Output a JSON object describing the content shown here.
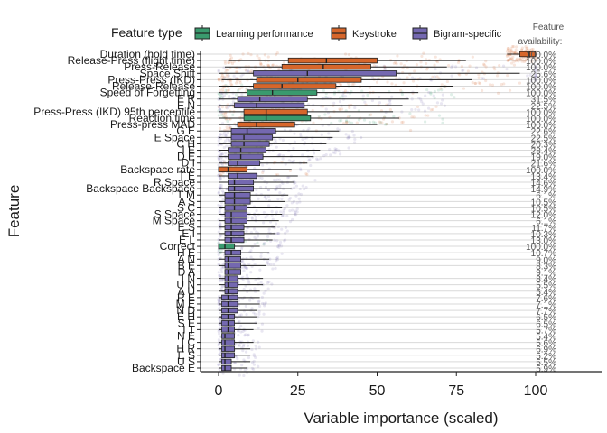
{
  "chart_data": {
    "type": "boxplot",
    "xlabel": "Variable importance (scaled)",
    "ylabel": "Feature",
    "xlim": [
      -5,
      108
    ],
    "x_ticks": [
      0,
      25,
      50,
      75,
      100
    ],
    "legend": {
      "title": "Feature type",
      "position": "top",
      "entries": [
        {
          "name": "Learning performance",
          "color": "#3a9a6e"
        },
        {
          "name": "Keystroke",
          "color": "#d6662b"
        },
        {
          "name": "Bigram-specific",
          "color": "#7468b0"
        }
      ]
    },
    "availability_title": "Feature availability:",
    "features": [
      {
        "name": "Duration (hold time)",
        "type": "Keystroke",
        "availability": "100.0%",
        "wlo": 91,
        "q1": 95,
        "med": 98,
        "q3": 100,
        "whi": 100
      },
      {
        "name": "Release-Press (flight time)",
        "type": "Keystroke",
        "availability": "100.0%",
        "wlo": 3,
        "q1": 22,
        "med": 34,
        "q3": 50,
        "whi": 78
      },
      {
        "name": "Press-Release",
        "type": "Keystroke",
        "availability": "100.0%",
        "wlo": 2,
        "q1": 20,
        "med": 33,
        "q3": 48,
        "whi": 72
      },
      {
        "name": "Space Shift",
        "type": "Bigram-specific",
        "availability": "25.6%",
        "wlo": 0,
        "q1": 11,
        "med": 28,
        "q3": 56,
        "whi": 95
      },
      {
        "name": "Press-Press (IKD)",
        "type": "Keystroke",
        "availability": "100.0%",
        "wlo": 1,
        "q1": 12,
        "med": 25,
        "q3": 45,
        "whi": 80
      },
      {
        "name": "Release-Release",
        "type": "Keystroke",
        "availability": "100.0%",
        "wlo": 0,
        "q1": 11,
        "med": 20,
        "q3": 37,
        "whi": 74
      },
      {
        "name": "Speed of Forgetting",
        "type": "Learning performance",
        "availability": "100.0%",
        "wlo": 0,
        "q1": 9,
        "med": 17,
        "q3": 31,
        "whi": 63
      },
      {
        "name": "E R",
        "type": "Bigram-specific",
        "availability": "31.5%",
        "wlo": 0,
        "q1": 6,
        "med": 13,
        "q3": 28,
        "whi": 60
      },
      {
        "name": "E N",
        "type": "Bigram-specific",
        "availability": "22.5%",
        "wlo": 0,
        "q1": 5,
        "med": 12,
        "q3": 27,
        "whi": 58
      },
      {
        "name": "Press-Press (IKD) 95th percentile",
        "type": "Keystroke",
        "availability": "100.0%",
        "wlo": 0,
        "q1": 8,
        "med": 15,
        "q3": 28,
        "whi": 55
      },
      {
        "name": "Reaction time",
        "type": "Learning performance",
        "availability": "100.0%",
        "wlo": 0,
        "q1": 8,
        "med": 15,
        "q3": 29,
        "whi": 57
      },
      {
        "name": "Press-press MAD",
        "type": "Keystroke",
        "availability": "100.0%",
        "wlo": 0,
        "q1": 6,
        "med": 12,
        "q3": 24,
        "whi": 50
      },
      {
        "name": "G E",
        "type": "Bigram-specific",
        "availability": "22.6%",
        "wlo": 0,
        "q1": 4,
        "med": 9,
        "q3": 18,
        "whi": 38
      },
      {
        "name": "E Space",
        "type": "Bigram-specific",
        "availability": "22.5%",
        "wlo": 0,
        "q1": 4,
        "med": 8,
        "q3": 17,
        "whi": 36
      },
      {
        "name": "C H",
        "type": "Bigram-specific",
        "availability": "20.3%",
        "wlo": 0,
        "q1": 4,
        "med": 8,
        "q3": 16,
        "whi": 34
      },
      {
        "name": "I E",
        "type": "Bigram-specific",
        "availability": "28.4%",
        "wlo": 0,
        "q1": 3,
        "med": 7,
        "q3": 15,
        "whi": 32
      },
      {
        "name": "D E",
        "type": "Bigram-specific",
        "availability": "19.0%",
        "wlo": 0,
        "q1": 3,
        "med": 7,
        "q3": 14,
        "whi": 30
      },
      {
        "name": "D I",
        "type": "Bigram-specific",
        "availability": "21.6%",
        "wlo": 0,
        "q1": 3,
        "med": 6,
        "q3": 13,
        "whi": 28
      },
      {
        "name": "Backspace rate",
        "type": "Keystroke",
        "availability": "100.0%",
        "wlo": 0,
        "q1": 0,
        "med": 3,
        "q3": 9,
        "whi": 23
      },
      {
        "name": "T E",
        "type": "Bigram-specific",
        "availability": "13.4%",
        "wlo": 0,
        "q1": 3,
        "med": 6,
        "q3": 12,
        "whi": 25
      },
      {
        "name": "R Space",
        "type": "Bigram-specific",
        "availability": "14.6%",
        "wlo": 0,
        "q1": 3,
        "med": 5,
        "q3": 11,
        "whi": 24
      },
      {
        "name": "Backspace Backspace",
        "type": "Bigram-specific",
        "availability": "14.9%",
        "wlo": 0,
        "q1": 3,
        "med": 5,
        "q3": 11,
        "whi": 23
      },
      {
        "name": "T M",
        "type": "Bigram-specific",
        "availability": "6.1%",
        "wlo": 0,
        "q1": 2,
        "med": 5,
        "q3": 10,
        "whi": 22
      },
      {
        "name": "A S",
        "type": "Bigram-specific",
        "availability": "10.5%",
        "wlo": 0,
        "q1": 2,
        "med": 5,
        "q3": 10,
        "whi": 21
      },
      {
        "name": "S C",
        "type": "Bigram-specific",
        "availability": "10.5%",
        "wlo": 0,
        "q1": 2,
        "med": 5,
        "q3": 9,
        "whi": 20
      },
      {
        "name": "S Space",
        "type": "Bigram-specific",
        "availability": "12.0%",
        "wlo": 0,
        "q1": 2,
        "med": 4,
        "q3": 9,
        "whi": 20
      },
      {
        "name": "M Space",
        "type": "Bigram-specific",
        "availability": "6.1%",
        "wlo": 0,
        "q1": 2,
        "med": 4,
        "q3": 9,
        "whi": 19
      },
      {
        "name": "E S",
        "type": "Bigram-specific",
        "availability": "11.7%",
        "wlo": 0,
        "q1": 2,
        "med": 4,
        "q3": 8,
        "whi": 18
      },
      {
        "name": "E I",
        "type": "Bigram-specific",
        "availability": "10.3%",
        "wlo": 0,
        "q1": 2,
        "med": 4,
        "q3": 8,
        "whi": 18
      },
      {
        "name": "E L",
        "type": "Bigram-specific",
        "availability": "13.0%",
        "wlo": 0,
        "q1": 2,
        "med": 4,
        "q3": 8,
        "whi": 17
      },
      {
        "name": "Correct",
        "type": "Learning performance",
        "availability": "100.0%",
        "wlo": 0,
        "q1": 0,
        "med": 2,
        "q3": 5,
        "whi": 13
      },
      {
        "name": "H E",
        "type": "Bigram-specific",
        "availability": "10.7%",
        "wlo": 0,
        "q1": 2,
        "med": 4,
        "q3": 7,
        "whi": 16
      },
      {
        "name": "A N",
        "type": "Bigram-specific",
        "availability": "9.0%",
        "wlo": 0,
        "q1": 2,
        "med": 3,
        "q3": 7,
        "whi": 16
      },
      {
        "name": "B E",
        "type": "Bigram-specific",
        "availability": "8.3%",
        "wlo": 0,
        "q1": 2,
        "med": 3,
        "q3": 7,
        "whi": 15
      },
      {
        "name": "D A",
        "type": "Bigram-specific",
        "availability": "9.1%",
        "wlo": 0,
        "q1": 2,
        "med": 3,
        "q3": 7,
        "whi": 15
      },
      {
        "name": "I N",
        "type": "Bigram-specific",
        "availability": "8.4%",
        "wlo": 0,
        "q1": 2,
        "med": 3,
        "q3": 6,
        "whi": 14
      },
      {
        "name": "U N",
        "type": "Bigram-specific",
        "availability": "5.5%",
        "wlo": 0,
        "q1": 2,
        "med": 3,
        "q3": 6,
        "whi": 14
      },
      {
        "name": "A U",
        "type": "Bigram-specific",
        "availability": "5.4%",
        "wlo": 0,
        "q1": 2,
        "med": 3,
        "q3": 6,
        "whi": 13
      },
      {
        "name": "R E",
        "type": "Bigram-specific",
        "availability": "7.6%",
        "wlo": 0,
        "q1": 1,
        "med": 3,
        "q3": 6,
        "whi": 13
      },
      {
        "name": "M E",
        "type": "Bigram-specific",
        "availability": "7.1%",
        "wlo": 0,
        "q1": 1,
        "med": 3,
        "q3": 6,
        "whi": 13
      },
      {
        "name": "N D",
        "type": "Bigram-specific",
        "availability": "7.7%",
        "wlo": 0,
        "q1": 1,
        "med": 3,
        "q3": 6,
        "whi": 12
      },
      {
        "name": "E H",
        "type": "Bigram-specific",
        "availability": "6.5%",
        "wlo": 0,
        "q1": 1,
        "med": 3,
        "q3": 5,
        "whi": 12
      },
      {
        "name": "S E",
        "type": "Bigram-specific",
        "availability": "6.5%",
        "wlo": 0,
        "q1": 1,
        "med": 3,
        "q3": 5,
        "whi": 12
      },
      {
        "name": "I T",
        "type": "Bigram-specific",
        "availability": "5.7%",
        "wlo": 0,
        "q1": 1,
        "med": 3,
        "q3": 5,
        "whi": 11
      },
      {
        "name": "N E",
        "type": "Bigram-specific",
        "availability": "5.4%",
        "wlo": 0,
        "q1": 1,
        "med": 2,
        "q3": 5,
        "whi": 11
      },
      {
        "name": "I C",
        "type": "Bigram-specific",
        "availability": "5.6%",
        "wlo": 0,
        "q1": 1,
        "med": 2,
        "q3": 5,
        "whi": 11
      },
      {
        "name": "H R",
        "type": "Bigram-specific",
        "availability": "6.9%",
        "wlo": 0,
        "q1": 1,
        "med": 2,
        "q3": 5,
        "whi": 10
      },
      {
        "name": "E S",
        "type": "Bigram-specific",
        "availability": "5.2%",
        "wlo": 0,
        "q1": 1,
        "med": 2,
        "q3": 5,
        "whi": 10
      },
      {
        "name": "U S",
        "type": "Bigram-specific",
        "availability": "5.5%",
        "wlo": 0,
        "q1": 1,
        "med": 2,
        "q3": 4,
        "whi": 10
      },
      {
        "name": "Backspace E",
        "type": "Bigram-specific",
        "availability": "5.9%",
        "wlo": 0,
        "q1": 1,
        "med": 2,
        "q3": 4,
        "whi": 9
      }
    ]
  }
}
